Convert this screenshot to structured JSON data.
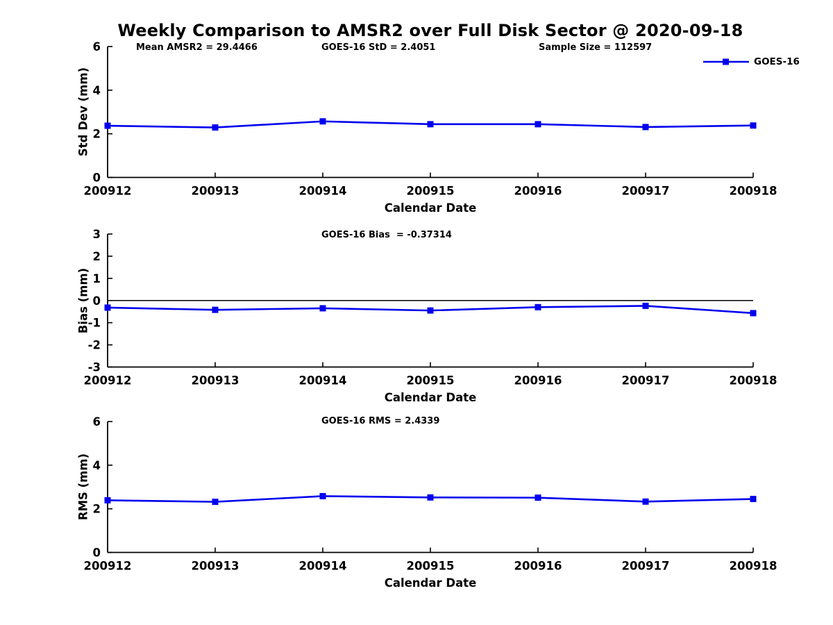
{
  "figure": {
    "title": "Weekly Comparison to AMSR2 over Full Disk Sector @ 2020-09-18",
    "legend_label": "GOES-16",
    "line_color": "#0000EE",
    "marker_shape": "square",
    "axis_color": "#000000",
    "text_color": "#000000",
    "background_color": "#FFFFFF"
  },
  "chart_data": [
    {
      "type": "line",
      "panel": "std-dev",
      "title": "",
      "annotations": [
        "Mean AMSR2 = 29.4466",
        "GOES-16 StD = 2.4051",
        "Sample Size = 112597"
      ],
      "categories": [
        "200912",
        "200913",
        "200914",
        "200915",
        "200916",
        "200917",
        "200918"
      ],
      "series": [
        {
          "name": "GOES-16",
          "values": [
            2.37,
            2.29,
            2.57,
            2.44,
            2.44,
            2.31,
            2.38
          ]
        }
      ],
      "xlabel": "Calendar Date",
      "ylabel": "Std Dev (mm)",
      "ylim": [
        0,
        6
      ],
      "yticks": [
        0,
        2,
        4,
        6
      ],
      "zero_line": false,
      "grid": false,
      "legend_position": "top-right"
    },
    {
      "type": "line",
      "panel": "bias",
      "title": "",
      "annotations": [
        "GOES-16 Bias  = -0.37314"
      ],
      "categories": [
        "200912",
        "200913",
        "200914",
        "200915",
        "200916",
        "200917",
        "200918"
      ],
      "series": [
        {
          "name": "GOES-16",
          "values": [
            -0.32,
            -0.42,
            -0.35,
            -0.45,
            -0.3,
            -0.24,
            -0.57
          ]
        }
      ],
      "xlabel": "Calendar Date",
      "ylabel": "Bias (mm)",
      "ylim": [
        -3,
        3
      ],
      "yticks": [
        -3,
        -2,
        -1,
        0,
        1,
        2,
        3
      ],
      "zero_line": true,
      "grid": false,
      "legend_position": "none"
    },
    {
      "type": "line",
      "panel": "rms",
      "title": "",
      "annotations": [
        "GOES-16 RMS = 2.4339"
      ],
      "categories": [
        "200912",
        "200913",
        "200914",
        "200915",
        "200916",
        "200917",
        "200918"
      ],
      "series": [
        {
          "name": "GOES-16",
          "values": [
            2.39,
            2.32,
            2.58,
            2.52,
            2.51,
            2.33,
            2.45
          ]
        }
      ],
      "xlabel": "Calendar Date",
      "ylabel": "RMS (mm)",
      "ylim": [
        0,
        6
      ],
      "yticks": [
        0,
        2,
        4,
        6
      ],
      "zero_line": false,
      "grid": false,
      "legend_position": "none"
    }
  ]
}
